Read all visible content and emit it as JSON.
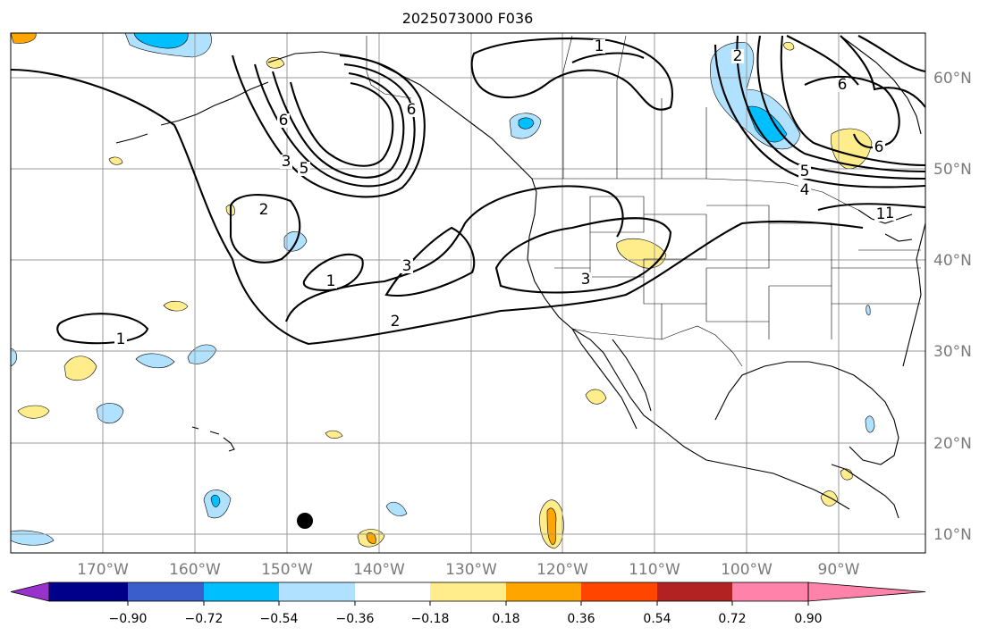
{
  "title": "2025073000 F036",
  "lon_ticks": [
    "170°W",
    "160°W",
    "150°W",
    "140°W",
    "130°W",
    "120°W",
    "110°W",
    "100°W",
    "90°W"
  ],
  "lat_ticks": [
    "60°N",
    "50°N",
    "40°N",
    "30°N",
    "20°N",
    "10°N"
  ],
  "colorbar": {
    "tick_labels": [
      "−0.90",
      "−0.72",
      "−0.54",
      "−0.36",
      "−0.18",
      "0.18",
      "0.36",
      "0.54",
      "0.72",
      "0.90"
    ],
    "colors": [
      "#9932cc",
      "#00008b",
      "#3a5fcd",
      "#00bfff",
      "#b0e2ff",
      "#ffffff",
      "#ffec8b",
      "#ffa500",
      "#ff4500",
      "#b22222",
      "#ff82ab"
    ]
  },
  "contour_labels": [
    "1",
    "1",
    "2",
    "2",
    "3",
    "3",
    "1",
    "1",
    "3",
    "5",
    "6",
    "5",
    "6",
    "4",
    "6",
    "1",
    "6",
    "2"
  ],
  "shading_colors": {
    "neg_light": "#b0e2ff",
    "neg_mid": "#00bfff",
    "pos_light": "#ffec8b",
    "pos_mid": "#ffa500"
  },
  "marker_color": "#000000"
}
